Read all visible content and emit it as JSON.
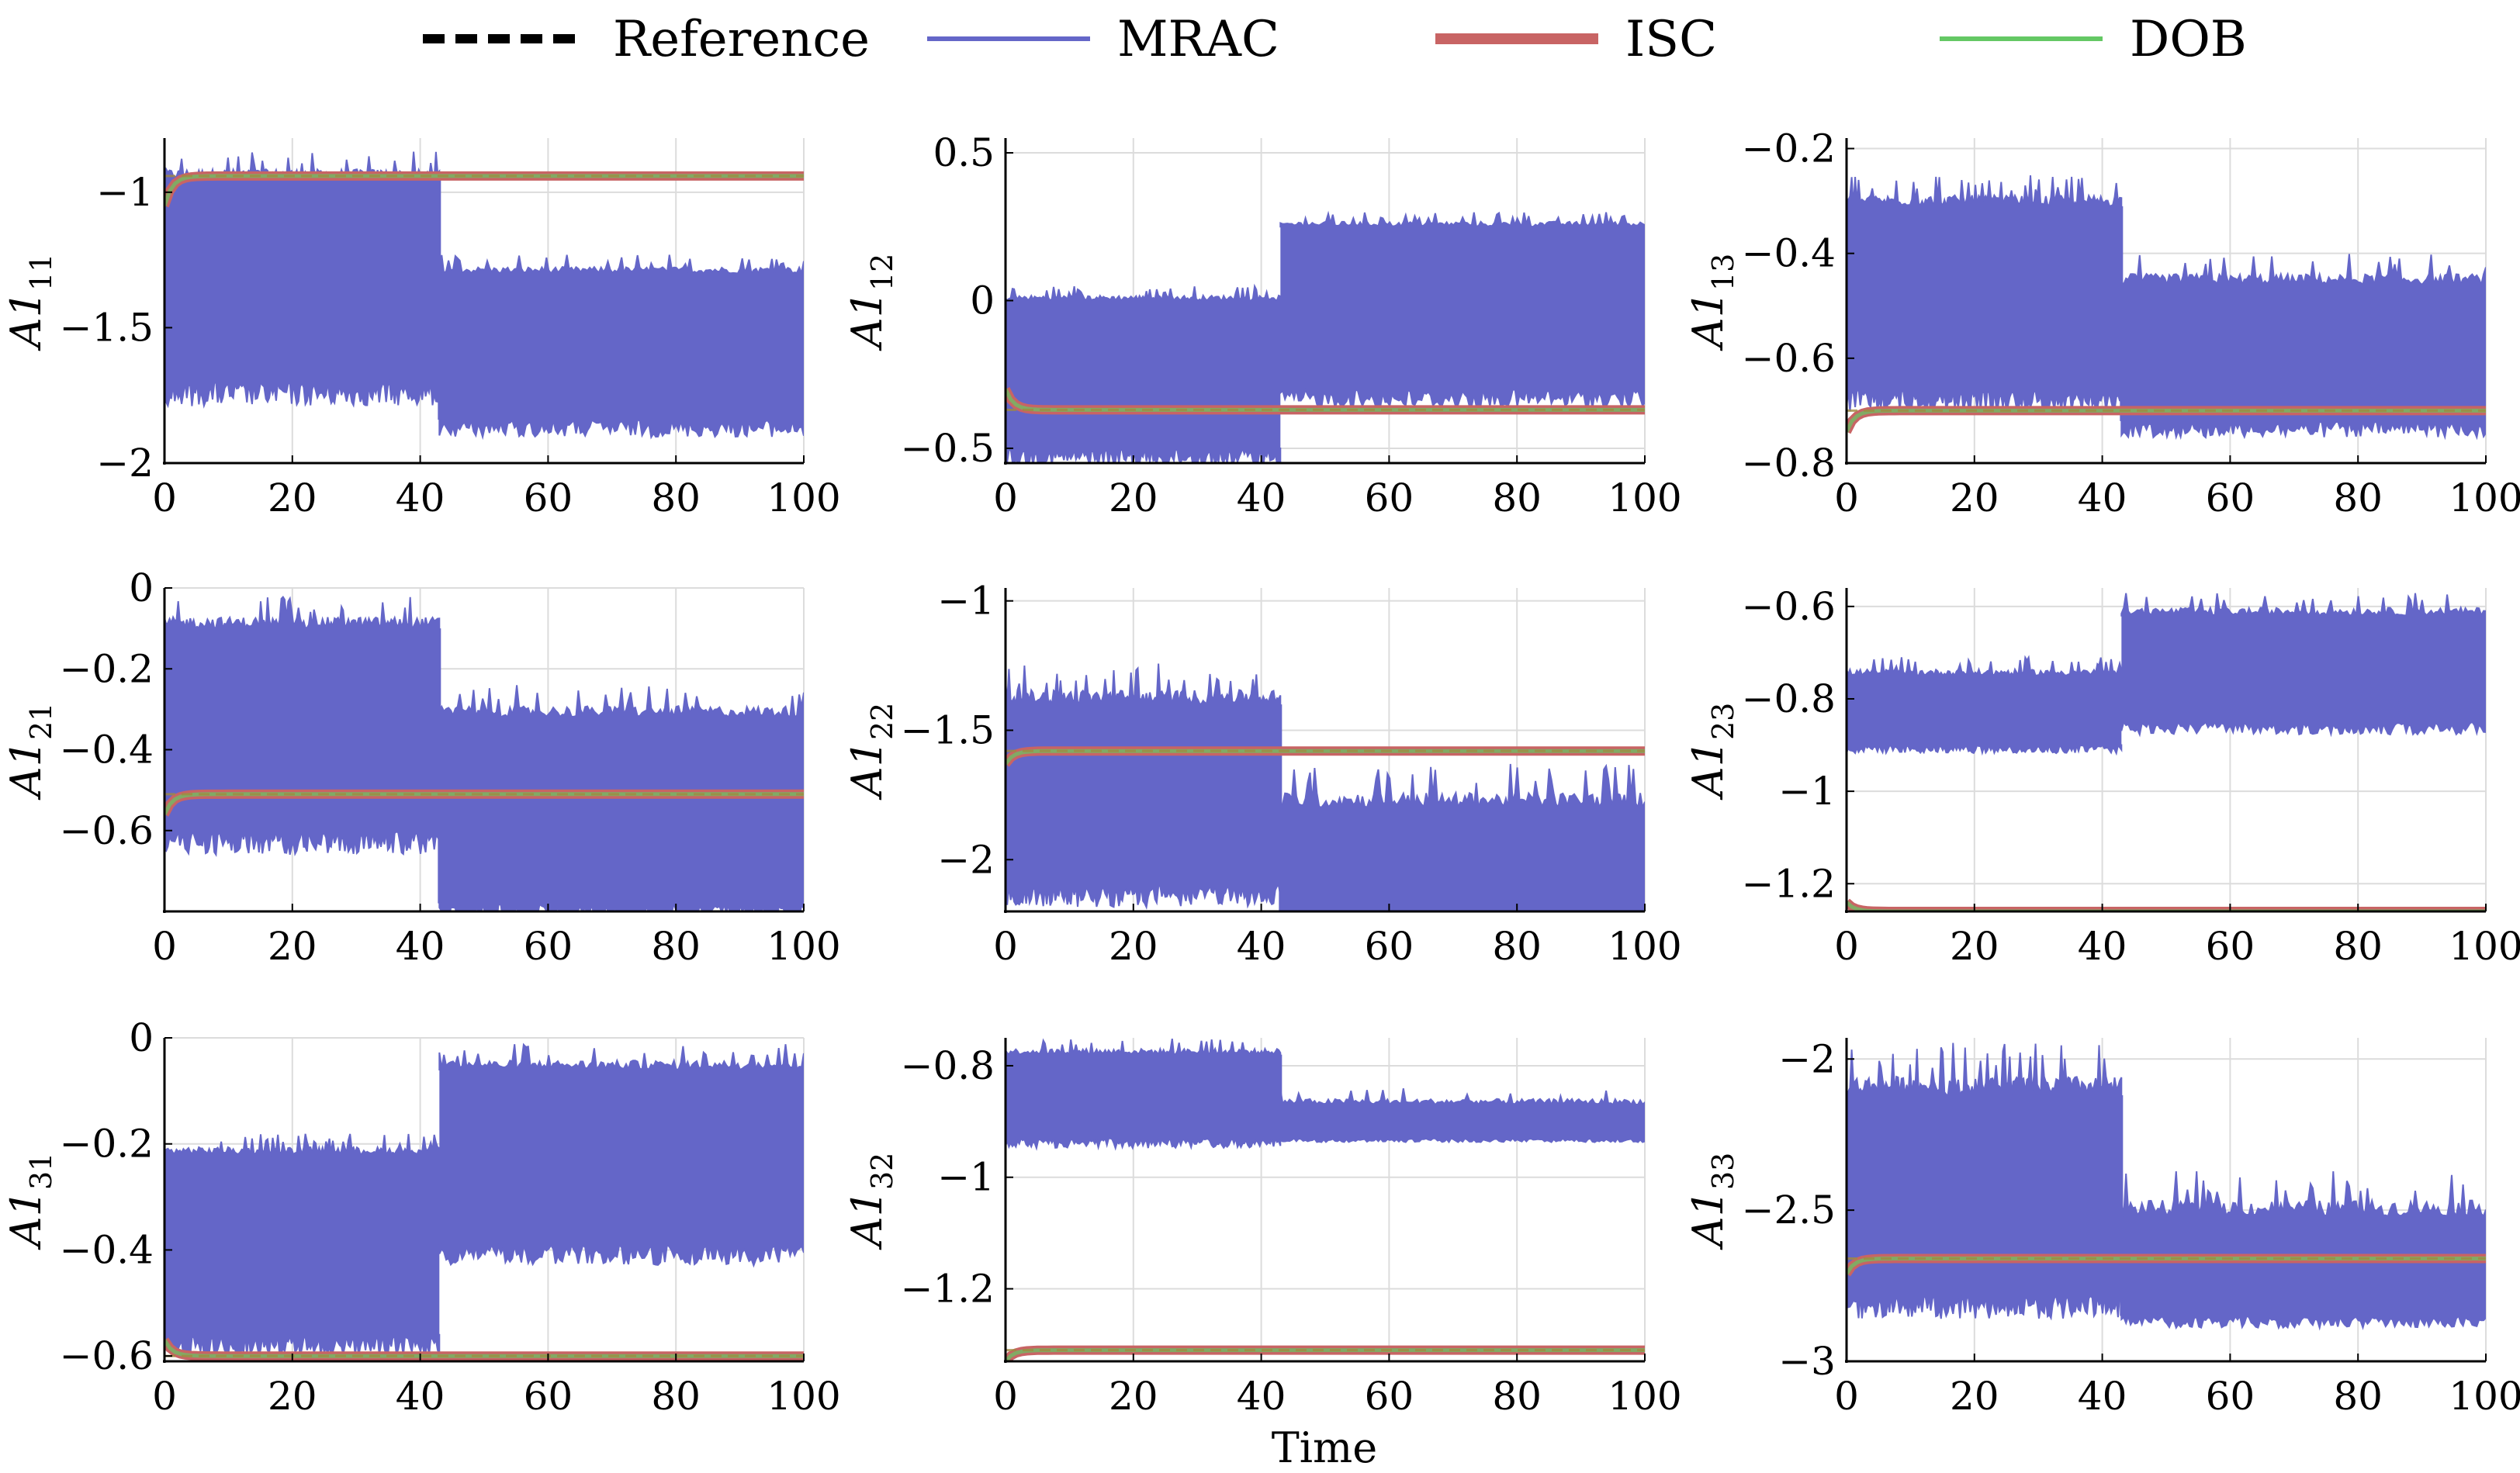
{
  "legend": {
    "items": [
      {
        "label": "Reference",
        "color": "#000000",
        "style": "dashed"
      },
      {
        "label": "MRAC",
        "color": "#6466c8",
        "style": "solid"
      },
      {
        "label": "ISC",
        "color": "#c86464",
        "style": "solid-thick"
      },
      {
        "label": "DOB",
        "color": "#64c864",
        "style": "solid"
      }
    ]
  },
  "shared_xlabel": "Time",
  "chart_data": [
    {
      "type": "line",
      "ylabel": "A1",
      "ylabel_sub": "11",
      "xlim": [
        0,
        100
      ],
      "xticks": [
        0,
        20,
        40,
        60,
        80,
        100
      ],
      "ylim": [
        -2,
        -0.8
      ],
      "yticks": [
        -2,
        -1.5,
        -1
      ],
      "ytick_labels": [
        "−2",
        "−1.5",
        "−1"
      ],
      "switch_time": 43,
      "series": [
        {
          "name": "MRAC",
          "band_before": [
            -1.7,
            -0.95
          ],
          "band_after": [
            -1.84,
            -1.3
          ],
          "peaks_before": -0.85,
          "peaks_after": -1.23
        },
        {
          "name": "ISC",
          "start": -1.05,
          "final": -0.94
        },
        {
          "name": "DOB",
          "start": -1.05,
          "final": -0.94
        },
        {
          "name": "Reference",
          "final": -0.94
        }
      ]
    },
    {
      "type": "line",
      "ylabel": "A1",
      "ylabel_sub": "12",
      "xlim": [
        0,
        100
      ],
      "xticks": [
        0,
        20,
        40,
        60,
        80,
        100
      ],
      "ylim": [
        -0.55,
        0.55
      ],
      "yticks": [
        -0.5,
        0,
        0.5
      ],
      "ytick_labels": [
        "−0.5",
        "0",
        "0.5"
      ],
      "switch_time": 43,
      "series": [
        {
          "name": "MRAC",
          "band_before": [
            -0.5,
            0.0
          ],
          "band_after": [
            -0.3,
            0.25
          ],
          "peaks_before": 0.05,
          "peaks_after": 0.3
        },
        {
          "name": "ISC",
          "start": -0.3,
          "final": -0.37
        },
        {
          "name": "DOB",
          "start": -0.3,
          "final": -0.37
        },
        {
          "name": "Reference",
          "final": -0.37
        }
      ]
    },
    {
      "type": "line",
      "ylabel": "A1",
      "ylabel_sub": "13",
      "xlim": [
        0,
        100
      ],
      "xticks": [
        0,
        20,
        40,
        60,
        80,
        100
      ],
      "ylim": [
        -0.8,
        -0.18
      ],
      "yticks": [
        -0.8,
        -0.6,
        -0.4,
        -0.2
      ],
      "ytick_labels": [
        "−0.8",
        "−0.6",
        "−0.4",
        "−0.2"
      ],
      "switch_time": 43,
      "series": [
        {
          "name": "MRAC",
          "band_before": [
            -0.66,
            -0.31
          ],
          "band_after": [
            -0.72,
            -0.46
          ],
          "peaks_before": -0.25,
          "peaks_after": -0.4
        },
        {
          "name": "ISC",
          "start": -0.74,
          "final": -0.7
        },
        {
          "name": "DOB",
          "start": -0.74,
          "final": -0.7
        },
        {
          "name": "Reference",
          "final": -0.7
        }
      ]
    },
    {
      "type": "line",
      "ylabel": "A1",
      "ylabel_sub": "21",
      "xlim": [
        0,
        100
      ],
      "xticks": [
        0,
        20,
        40,
        60,
        80,
        100
      ],
      "ylim": [
        -0.8,
        0
      ],
      "yticks": [
        -0.6,
        -0.4,
        -0.2,
        0
      ],
      "ytick_labels": [
        "−0.6",
        "−0.4",
        "−0.2",
        "0"
      ],
      "switch_time": 43,
      "series": [
        {
          "name": "MRAC",
          "band_before": [
            -0.6,
            -0.1
          ],
          "band_after": [
            -0.78,
            -0.32
          ],
          "peaks_before": -0.02,
          "peaks_after": -0.24
        },
        {
          "name": "ISC",
          "start": -0.56,
          "final": -0.51
        },
        {
          "name": "DOB",
          "start": -0.56,
          "final": -0.51
        },
        {
          "name": "Reference",
          "final": -0.51
        }
      ]
    },
    {
      "type": "line",
      "ylabel": "A1",
      "ylabel_sub": "22",
      "xlim": [
        0,
        100
      ],
      "xticks": [
        0,
        20,
        40,
        60,
        80,
        100
      ],
      "ylim": [
        -2.2,
        -0.95
      ],
      "yticks": [
        -2,
        -1.5,
        -1
      ],
      "ytick_labels": [
        "−2",
        "−1.5",
        "−1"
      ],
      "switch_time": 43,
      "series": [
        {
          "name": "MRAC",
          "band_before": [
            -2.1,
            -1.4
          ],
          "band_after": [
            -2.2,
            -1.8
          ],
          "peaks_before": -1.24,
          "peaks_after": -1.63
        },
        {
          "name": "ISC",
          "start": -1.63,
          "final": -1.58
        },
        {
          "name": "DOB",
          "start": -1.63,
          "final": -1.58
        },
        {
          "name": "Reference",
          "final": -1.58
        }
      ]
    },
    {
      "type": "line",
      "ylabel": "A1",
      "ylabel_sub": "23",
      "xlim": [
        0,
        100
      ],
      "xticks": [
        0,
        20,
        40,
        60,
        80,
        100
      ],
      "ylim": [
        -1.26,
        -0.56
      ],
      "yticks": [
        -1.2,
        -1,
        -0.8,
        -0.6
      ],
      "ytick_labels": [
        "−1.2",
        "−1",
        "−0.8",
        "−0.6"
      ],
      "switch_time": 43,
      "series": [
        {
          "name": "MRAC",
          "band_before": [
            -0.9,
            -0.75
          ],
          "band_after": [
            -0.85,
            -0.62
          ],
          "peaks_before": -0.71,
          "peaks_after": -0.57
        },
        {
          "name": "ISC",
          "start": -1.24,
          "final": -1.26
        },
        {
          "name": "DOB",
          "start": -1.24,
          "final": -1.26
        },
        {
          "name": "Reference",
          "final": -1.26
        }
      ]
    },
    {
      "type": "line",
      "ylabel": "A1",
      "ylabel_sub": "31",
      "xlim": [
        0,
        100
      ],
      "xticks": [
        0,
        20,
        40,
        60,
        80,
        100
      ],
      "ylim": [
        -0.61,
        0
      ],
      "yticks": [
        -0.6,
        -0.4,
        -0.2,
        0
      ],
      "ytick_labels": [
        "−0.6",
        "−0.4",
        "−0.2",
        "0"
      ],
      "switch_time": 43,
      "series": [
        {
          "name": "MRAC",
          "band_before": [
            -0.56,
            -0.22
          ],
          "band_after": [
            -0.39,
            -0.06
          ],
          "peaks_before": -0.18,
          "peaks_after": -0.01
        },
        {
          "name": "ISC",
          "start": -0.57,
          "final": -0.6
        },
        {
          "name": "DOB",
          "start": -0.57,
          "final": -0.6
        },
        {
          "name": "Reference",
          "final": -0.6
        }
      ]
    },
    {
      "type": "line",
      "ylabel": "A1",
      "ylabel_sub": "32",
      "xlim": [
        0,
        100
      ],
      "xticks": [
        0,
        20,
        40,
        60,
        80,
        100
      ],
      "ylim": [
        -1.33,
        -0.75
      ],
      "yticks": [
        -1.2,
        -1,
        -0.8
      ],
      "ytick_labels": [
        "−1.2",
        "−1",
        "−0.8"
      ],
      "switch_time": 43,
      "series": [
        {
          "name": "MRAC",
          "band_before": [
            -0.93,
            -0.78
          ],
          "band_after": [
            -0.93,
            -0.87
          ],
          "peaks_before": -0.75,
          "peaks_after": -0.84
        },
        {
          "name": "ISC",
          "start": -1.33,
          "final": -1.31
        },
        {
          "name": "DOB",
          "start": -1.33,
          "final": -1.31
        },
        {
          "name": "Reference",
          "final": -1.31
        }
      ]
    },
    {
      "type": "line",
      "ylabel": "A1",
      "ylabel_sub": "33",
      "xlim": [
        0,
        100
      ],
      "xticks": [
        0,
        20,
        40,
        60,
        80,
        100
      ],
      "ylim": [
        -3,
        -1.93
      ],
      "yticks": [
        -3,
        -2.5,
        -2
      ],
      "ytick_labels": [
        "−3",
        "−2.5",
        "−2"
      ],
      "switch_time": 43,
      "series": [
        {
          "name": "MRAC",
          "band_before": [
            -2.78,
            -2.12
          ],
          "band_after": [
            -2.85,
            -2.52
          ],
          "peaks_before": -1.94,
          "peaks_after": -2.37
        },
        {
          "name": "ISC",
          "start": -2.71,
          "final": -2.66
        },
        {
          "name": "DOB",
          "start": -2.71,
          "final": -2.66
        },
        {
          "name": "Reference",
          "final": -2.66
        }
      ]
    }
  ]
}
